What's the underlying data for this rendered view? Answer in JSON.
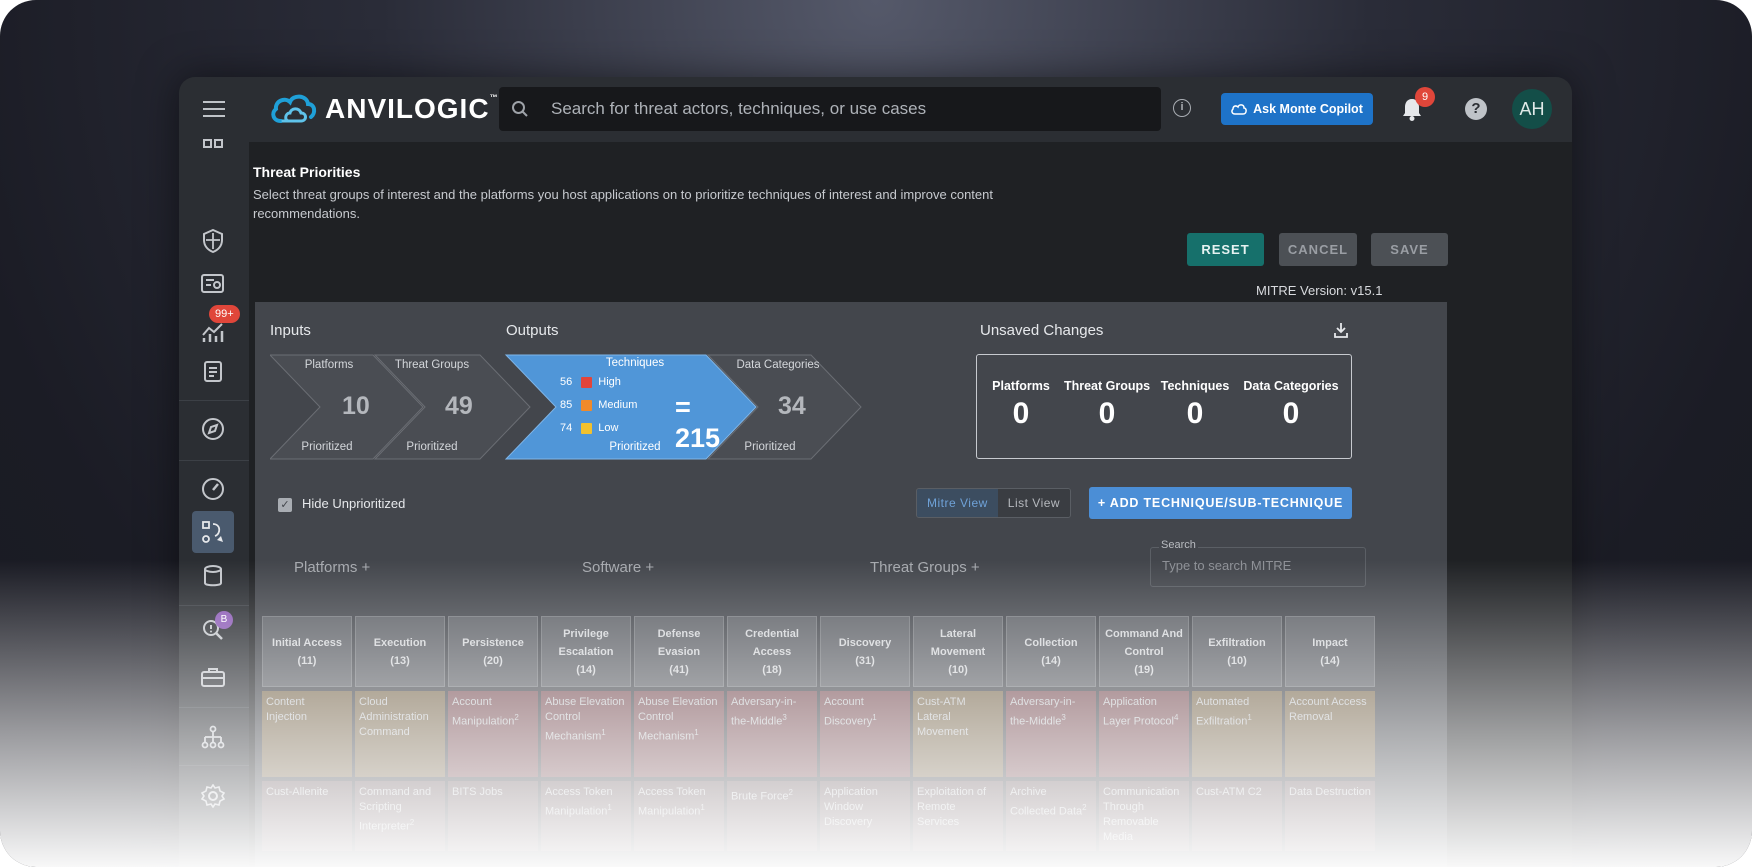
{
  "header": {
    "logo_text": "ANVILOGIC",
    "logo_tm": "™",
    "search_placeholder": "Search for threat actors, techniques, or use cases",
    "info_glyph": "i",
    "copilot_label": "Ask Monte Copilot",
    "notification_count": "9",
    "help_glyph": "?",
    "avatar_initials": "AH"
  },
  "sidebar": {
    "badge_count": "99+",
    "badge_b": "B",
    "items": [
      "grid-icon",
      "shield-icon",
      "search-list-icon",
      "analytics-icon",
      "clipboard-icon",
      "compass-icon",
      "gauge-icon",
      "workflow-icon",
      "database-icon",
      "investigate-icon",
      "toolbox-icon",
      "hierarchy-icon",
      "settings-icon"
    ]
  },
  "page": {
    "title": "Threat Priorities",
    "description": "Select threat groups of interest and the platforms you host applications on to prioritize techniques of interest and improve content recommendations.",
    "reset_label": "RESET",
    "cancel_label": "CANCEL",
    "save_label": "SAVE",
    "mitre_version": "MITRE Version: v15.1"
  },
  "summary": {
    "inputs_label": "Inputs",
    "outputs_label": "Outputs",
    "unsaved_label": "Unsaved Changes",
    "platforms": {
      "label": "Platforms",
      "value": "10",
      "sub": "Prioritized"
    },
    "threat_groups": {
      "label": "Threat Groups",
      "value": "49",
      "sub": "Prioritized"
    },
    "techniques": {
      "label": "Techniques",
      "sub": "Prioritized",
      "total": "= 215",
      "high": {
        "count": "56",
        "label": "High",
        "color": "#e2443a"
      },
      "medium": {
        "count": "85",
        "label": "Medium",
        "color": "#f08a2b"
      },
      "low": {
        "count": "74",
        "label": "Low",
        "color": "#f2c12e"
      }
    },
    "data_categories": {
      "label": "Data Categories",
      "value": "34",
      "sub": "Prioritized"
    },
    "unsaved": [
      {
        "label": "Platforms",
        "value": "0"
      },
      {
        "label": "Threat Groups",
        "value": "0"
      },
      {
        "label": "Techniques",
        "value": "0"
      },
      {
        "label": "Data Categories",
        "value": "0"
      }
    ]
  },
  "controls": {
    "hide_unprioritized": "Hide Unprioritized",
    "mitre_view": "Mitre View",
    "list_view": "List View",
    "add_technique": "+ ADD TECHNIQUE/SUB-TECHNIQUE",
    "platforms_filter": "Platforms  +",
    "software_filter": "Software  +",
    "threat_groups_filter": "Threat Groups  +",
    "search_label": "Search",
    "search_placeholder": "Type to search MITRE"
  },
  "tactics": [
    {
      "name": "Initial Access",
      "count": "(11)"
    },
    {
      "name": "Execution",
      "count": "(13)"
    },
    {
      "name": "Persistence",
      "count": "(20)"
    },
    {
      "name": "Privilege Escalation",
      "count": "(14)"
    },
    {
      "name": "Defense Evasion",
      "count": "(41)"
    },
    {
      "name": "Credential Access",
      "count": "(18)"
    },
    {
      "name": "Discovery",
      "count": "(31)"
    },
    {
      "name": "Lateral Movement",
      "count": "(10)"
    },
    {
      "name": "Collection",
      "count": "(14)"
    },
    {
      "name": "Command And Control",
      "count": "(19)"
    },
    {
      "name": "Exfiltration",
      "count": "(10)"
    },
    {
      "name": "Impact",
      "count": "(14)"
    }
  ],
  "techniques_row1": [
    {
      "name": "Content Injection",
      "sup": "",
      "priority": "medium"
    },
    {
      "name": "Cloud Administration Command",
      "sup": "",
      "priority": "medium"
    },
    {
      "name": "Account Manipulation",
      "sup": "2",
      "priority": "high"
    },
    {
      "name": "Abuse Elevation Control Mechanism",
      "sup": "1",
      "priority": "high"
    },
    {
      "name": "Abuse Elevation Control Mechanism",
      "sup": "1",
      "priority": "high"
    },
    {
      "name": "Adversary-in-the-Middle",
      "sup": "3",
      "priority": "high"
    },
    {
      "name": "Account Discovery",
      "sup": "1",
      "priority": "high"
    },
    {
      "name": "Cust-ATM Lateral Movement",
      "sup": "",
      "priority": "medium"
    },
    {
      "name": "Adversary-in-the-Middle",
      "sup": "3",
      "priority": "high"
    },
    {
      "name": "Application Layer Protocol",
      "sup": "4",
      "priority": "high"
    },
    {
      "name": "Automated Exfiltration",
      "sup": "1",
      "priority": "medium"
    },
    {
      "name": "Account Access Removal",
      "sup": "",
      "priority": "medium"
    }
  ],
  "techniques_row2": [
    {
      "name": "Cust-Allenite",
      "sup": ""
    },
    {
      "name": "Command and Scripting Interpreter",
      "sup": "2"
    },
    {
      "name": "BITS Jobs",
      "sup": ""
    },
    {
      "name": "Access Token Manipulation",
      "sup": "1"
    },
    {
      "name": "Access Token Manipulation",
      "sup": "1"
    },
    {
      "name": "Brute Force",
      "sup": "2"
    },
    {
      "name": "Application Window Discovery",
      "sup": ""
    },
    {
      "name": "Exploitation of Remote Services",
      "sup": ""
    },
    {
      "name": "Archive Collected Data",
      "sup": "2"
    },
    {
      "name": "Communication Through Removable Media",
      "sup": ""
    },
    {
      "name": "Cust-ATM C2",
      "sup": ""
    },
    {
      "name": "Data Destruction",
      "sup": ""
    }
  ],
  "colors": {
    "high_cell": "#7a5157",
    "medium_cell": "#7a6a50",
    "accent_blue": "#4b8ed6",
    "teal": "#16706b"
  }
}
